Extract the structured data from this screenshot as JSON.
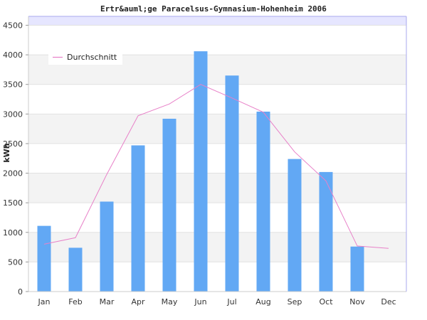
{
  "chart_data": {
    "type": "bar",
    "title": "Ertr&auml;ge Paracelsus-Gymnasium-Hohenheim 2006",
    "ylabel": "kWh",
    "xlabel": "",
    "categories": [
      "Jan",
      "Feb",
      "Mar",
      "Apr",
      "May",
      "Jun",
      "Jul",
      "Aug",
      "Sep",
      "Oct",
      "Nov",
      "Dec"
    ],
    "values": [
      1110,
      740,
      1520,
      2470,
      2920,
      4060,
      3650,
      3040,
      2240,
      2020,
      760,
      null
    ],
    "series": [
      {
        "name": "Durchschnitt",
        "type": "line",
        "values": [
          800,
          910,
          1980,
          2970,
          3170,
          3500,
          3270,
          3030,
          2360,
          1870,
          770,
          730
        ]
      }
    ],
    "yticks": [
      0,
      500,
      1000,
      1500,
      2000,
      2500,
      3000,
      3500,
      4000,
      4500
    ],
    "ylim": [
      0,
      4650
    ],
    "grid": true,
    "legend_position": "top-left",
    "colors": {
      "bar": "#62a8f4",
      "line": "#e880c8",
      "band": "#f3f3f3",
      "top_band": "#e6e6ff",
      "frame": "#aaaaee"
    }
  }
}
